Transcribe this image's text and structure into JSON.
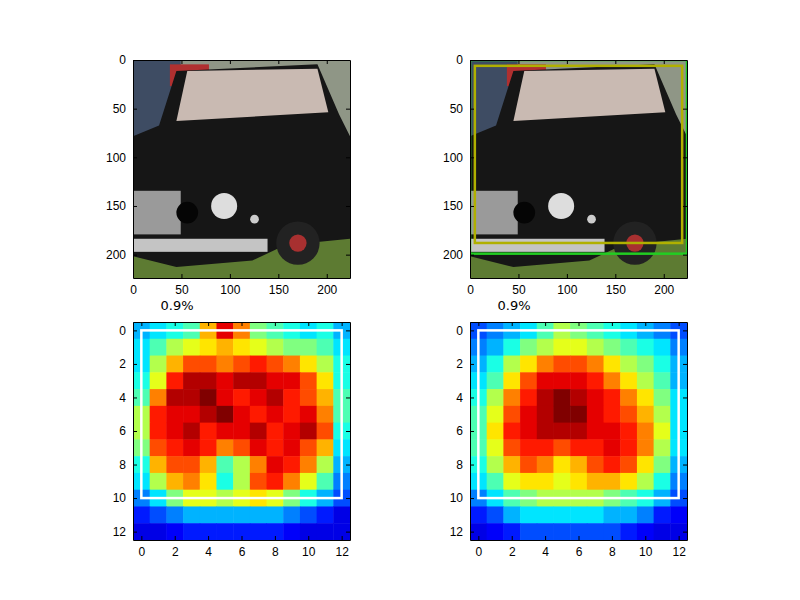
{
  "chart_data": [
    {
      "type": "image",
      "xlim": [
        0,
        224
      ],
      "ylim": [
        224,
        0
      ],
      "xticks": [
        0,
        50,
        100,
        150,
        200
      ],
      "yticks": [
        0,
        50,
        100,
        150,
        200
      ]
    },
    {
      "type": "image",
      "xlim": [
        0,
        224
      ],
      "ylim": [
        224,
        0
      ],
      "xticks": [
        0,
        50,
        100,
        150,
        200
      ],
      "yticks": [
        0,
        50,
        100,
        150,
        200
      ],
      "boxes": [
        {
          "x0": 0,
          "y0": 0,
          "x1": 224,
          "y1": 199,
          "color": "#22cc22"
        },
        {
          "x0": 5,
          "y0": 6,
          "x1": 219,
          "y1": 188,
          "color": "#b0b000"
        }
      ]
    },
    {
      "type": "heatmap",
      "title": "0.9%",
      "xlim": [
        -0.5,
        12.5
      ],
      "ylim": [
        12.5,
        -0.5
      ],
      "xticks": [
        0,
        2,
        4,
        6,
        8,
        10,
        12
      ],
      "yticks": [
        0,
        2,
        4,
        6,
        8,
        10,
        12
      ],
      "color_range": [
        0,
        1
      ],
      "cells": [
        [
          0.3,
          0.35,
          0.4,
          0.45,
          0.7,
          0.9,
          0.75,
          0.5,
          0.45,
          0.4,
          0.35,
          0.4,
          0.3
        ],
        [
          0.35,
          0.45,
          0.55,
          0.6,
          0.65,
          0.7,
          0.65,
          0.6,
          0.55,
          0.5,
          0.5,
          0.45,
          0.35
        ],
        [
          0.35,
          0.55,
          0.7,
          0.8,
          0.8,
          0.75,
          0.8,
          0.85,
          0.8,
          0.75,
          0.65,
          0.55,
          0.4
        ],
        [
          0.4,
          0.6,
          0.85,
          0.95,
          0.95,
          0.9,
          0.95,
          0.95,
          0.9,
          0.9,
          0.8,
          0.65,
          0.4
        ],
        [
          0.45,
          0.75,
          0.95,
          0.95,
          1.0,
          0.9,
          0.85,
          0.9,
          0.95,
          0.85,
          0.8,
          0.7,
          0.45
        ],
        [
          0.55,
          0.85,
          0.9,
          0.9,
          0.95,
          1.0,
          0.9,
          0.85,
          0.9,
          0.85,
          0.9,
          0.75,
          0.45
        ],
        [
          0.55,
          0.85,
          0.9,
          0.95,
          0.85,
          0.9,
          0.9,
          0.95,
          0.85,
          0.9,
          0.95,
          0.8,
          0.4
        ],
        [
          0.5,
          0.8,
          0.85,
          0.9,
          0.85,
          0.75,
          0.8,
          0.9,
          0.85,
          0.9,
          0.8,
          0.7,
          0.35
        ],
        [
          0.4,
          0.7,
          0.8,
          0.8,
          0.7,
          0.45,
          0.55,
          0.75,
          0.9,
          0.85,
          0.75,
          0.55,
          0.3
        ],
        [
          0.35,
          0.55,
          0.7,
          0.75,
          0.65,
          0.4,
          0.55,
          0.8,
          0.85,
          0.75,
          0.6,
          0.45,
          0.25
        ],
        [
          0.25,
          0.35,
          0.5,
          0.6,
          0.6,
          0.55,
          0.6,
          0.65,
          0.6,
          0.5,
          0.4,
          0.3,
          0.2
        ],
        [
          0.15,
          0.2,
          0.25,
          0.3,
          0.3,
          0.3,
          0.3,
          0.3,
          0.3,
          0.25,
          0.2,
          0.15,
          0.1
        ],
        [
          0.1,
          0.1,
          0.12,
          0.15,
          0.15,
          0.15,
          0.15,
          0.15,
          0.15,
          0.12,
          0.1,
          0.1,
          0.1
        ]
      ],
      "boxes": [
        {
          "x0": 0,
          "y0": 0,
          "x1": 12,
          "y1": 10,
          "color": "#ffffff"
        }
      ]
    },
    {
      "type": "heatmap",
      "title": "0.9%",
      "xlim": [
        -0.5,
        12.5
      ],
      "ylim": [
        12.5,
        -0.5
      ],
      "xticks": [
        0,
        2,
        4,
        6,
        8,
        10,
        12
      ],
      "yticks": [
        0,
        2,
        4,
        6,
        8,
        10,
        12
      ],
      "color_range": [
        0,
        1
      ],
      "cells": [
        [
          0.2,
          0.25,
          0.3,
          0.35,
          0.45,
          0.55,
          0.5,
          0.45,
          0.4,
          0.35,
          0.3,
          0.25,
          0.2
        ],
        [
          0.25,
          0.3,
          0.4,
          0.5,
          0.55,
          0.6,
          0.6,
          0.55,
          0.5,
          0.45,
          0.4,
          0.35,
          0.25
        ],
        [
          0.3,
          0.4,
          0.55,
          0.65,
          0.75,
          0.8,
          0.8,
          0.75,
          0.65,
          0.55,
          0.5,
          0.4,
          0.3
        ],
        [
          0.35,
          0.45,
          0.65,
          0.8,
          0.9,
          0.9,
          0.9,
          0.85,
          0.75,
          0.65,
          0.55,
          0.45,
          0.3
        ],
        [
          0.4,
          0.55,
          0.75,
          0.85,
          0.95,
          1.0,
          0.95,
          0.9,
          0.85,
          0.75,
          0.65,
          0.5,
          0.35
        ],
        [
          0.45,
          0.6,
          0.8,
          0.9,
          0.95,
          1.0,
          1.0,
          0.9,
          0.85,
          0.8,
          0.7,
          0.55,
          0.35
        ],
        [
          0.45,
          0.65,
          0.85,
          0.9,
          0.95,
          0.95,
          0.95,
          0.9,
          0.9,
          0.85,
          0.75,
          0.6,
          0.35
        ],
        [
          0.45,
          0.6,
          0.8,
          0.85,
          0.85,
          0.8,
          0.85,
          0.85,
          0.9,
          0.85,
          0.75,
          0.55,
          0.35
        ],
        [
          0.4,
          0.55,
          0.7,
          0.8,
          0.75,
          0.65,
          0.7,
          0.8,
          0.85,
          0.8,
          0.65,
          0.5,
          0.3
        ],
        [
          0.35,
          0.45,
          0.6,
          0.65,
          0.65,
          0.6,
          0.65,
          0.7,
          0.7,
          0.65,
          0.55,
          0.4,
          0.25
        ],
        [
          0.25,
          0.35,
          0.45,
          0.5,
          0.55,
          0.55,
          0.55,
          0.55,
          0.5,
          0.45,
          0.4,
          0.3,
          0.2
        ],
        [
          0.15,
          0.2,
          0.3,
          0.35,
          0.35,
          0.35,
          0.35,
          0.35,
          0.3,
          0.3,
          0.25,
          0.15,
          0.12
        ],
        [
          0.1,
          0.12,
          0.15,
          0.2,
          0.2,
          0.2,
          0.2,
          0.2,
          0.2,
          0.15,
          0.12,
          0.1,
          0.1
        ]
      ],
      "boxes": [
        {
          "x0": 0,
          "y0": 0,
          "x1": 12,
          "y1": 10,
          "color": "#ffffff"
        }
      ]
    }
  ]
}
